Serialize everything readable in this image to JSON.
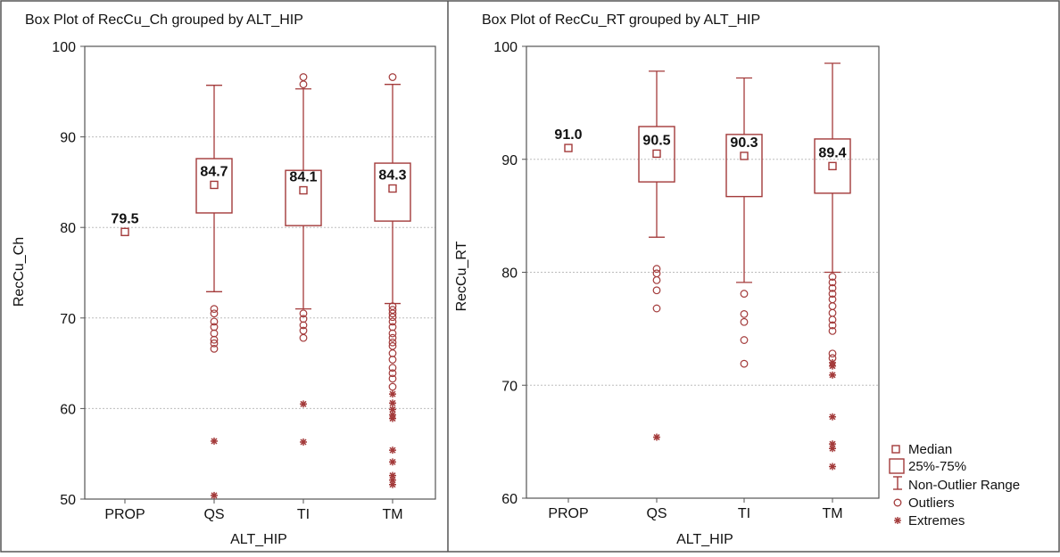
{
  "colors": {
    "mark": "#a33a3a",
    "grid": "#bdbdbd",
    "frame": "#555555",
    "text": "#111111"
  },
  "legend": {
    "median": "Median",
    "box": "25%-75%",
    "whisker": "Non-Outlier Range",
    "outliers": "Outliers",
    "extremes": "Extremes"
  },
  "chart_data": [
    {
      "type": "box",
      "title": "Box Plot of RecCu_Ch grouped by  ALT_HIP",
      "xlabel": "ALT_HIP",
      "ylabel": "RecCu_Ch",
      "ylim": [
        50,
        100
      ],
      "yticks": [
        50,
        60,
        70,
        80,
        90,
        100
      ],
      "grid": true,
      "categories": [
        "PROP",
        "QS",
        "TI",
        "TM"
      ],
      "median_labels": [
        "79.5",
        "84.7",
        "84.1",
        "84.3"
      ],
      "boxes": [
        {
          "median": 79.5,
          "q1": null,
          "q3": null,
          "whisker_low": null,
          "whisker_high": null,
          "outliers": [],
          "extremes": []
        },
        {
          "median": 84.7,
          "q1": 81.6,
          "q3": 87.6,
          "whisker_low": 72.9,
          "whisker_high": 95.7,
          "outliers": [
            71.0,
            70.5,
            69.6,
            69.0,
            68.3,
            67.6,
            67.2,
            66.6
          ],
          "extremes": [
            56.4,
            50.4
          ]
        },
        {
          "median": 84.1,
          "q1": 80.2,
          "q3": 86.3,
          "whisker_low": 71.0,
          "whisker_high": 95.3,
          "outliers": [
            96.6,
            95.8,
            70.5,
            69.9,
            69.2,
            68.6,
            67.8
          ],
          "extremes": [
            60.5,
            56.3
          ]
        },
        {
          "median": 84.3,
          "q1": 80.7,
          "q3": 87.1,
          "whisker_low": 71.6,
          "whisker_high": 95.8,
          "outliers": [
            96.6,
            71.3,
            70.9,
            70.5,
            70.1,
            69.6,
            69.0,
            68.3,
            67.8,
            67.3,
            66.9,
            66.1,
            65.4,
            64.5,
            63.9,
            63.3,
            62.4
          ],
          "extremes": [
            61.6,
            60.6,
            59.9,
            59.3,
            58.9,
            55.4,
            54.1,
            52.6,
            52.1,
            51.6
          ]
        }
      ]
    },
    {
      "type": "box",
      "title": "Box Plot of RecCu_RT grouped by  ALT_HIP",
      "xlabel": "ALT_HIP",
      "ylabel": "RecCu_RT",
      "ylim": [
        60,
        100
      ],
      "yticks": [
        60,
        70,
        80,
        90,
        100
      ],
      "grid": true,
      "categories": [
        "PROP",
        "QS",
        "TI",
        "TM"
      ],
      "median_labels": [
        "91.0",
        "90.5",
        "90.3",
        "89.4"
      ],
      "boxes": [
        {
          "median": 91.0,
          "q1": null,
          "q3": null,
          "whisker_low": null,
          "whisker_high": null,
          "outliers": [],
          "extremes": []
        },
        {
          "median": 90.5,
          "q1": 88.0,
          "q3": 92.9,
          "whisker_low": 83.1,
          "whisker_high": 97.8,
          "outliers": [
            80.3,
            79.9,
            79.3,
            78.4,
            76.8
          ],
          "extremes": [
            65.4
          ]
        },
        {
          "median": 90.3,
          "q1": 86.7,
          "q3": 92.2,
          "whisker_low": 79.1,
          "whisker_high": 97.2,
          "outliers": [
            78.1,
            76.3,
            75.6,
            74.0,
            71.9
          ],
          "extremes": []
        },
        {
          "median": 89.4,
          "q1": 87.0,
          "q3": 91.8,
          "whisker_low": 80.0,
          "whisker_high": 98.5,
          "outliers": [
            79.6,
            79.1,
            78.6,
            78.1,
            77.6,
            77.0,
            76.4,
            75.8,
            75.3,
            74.8,
            72.8,
            72.4
          ],
          "extremes": [
            72.0,
            71.7,
            70.9,
            67.2,
            64.8,
            64.4,
            62.8
          ]
        }
      ]
    }
  ]
}
